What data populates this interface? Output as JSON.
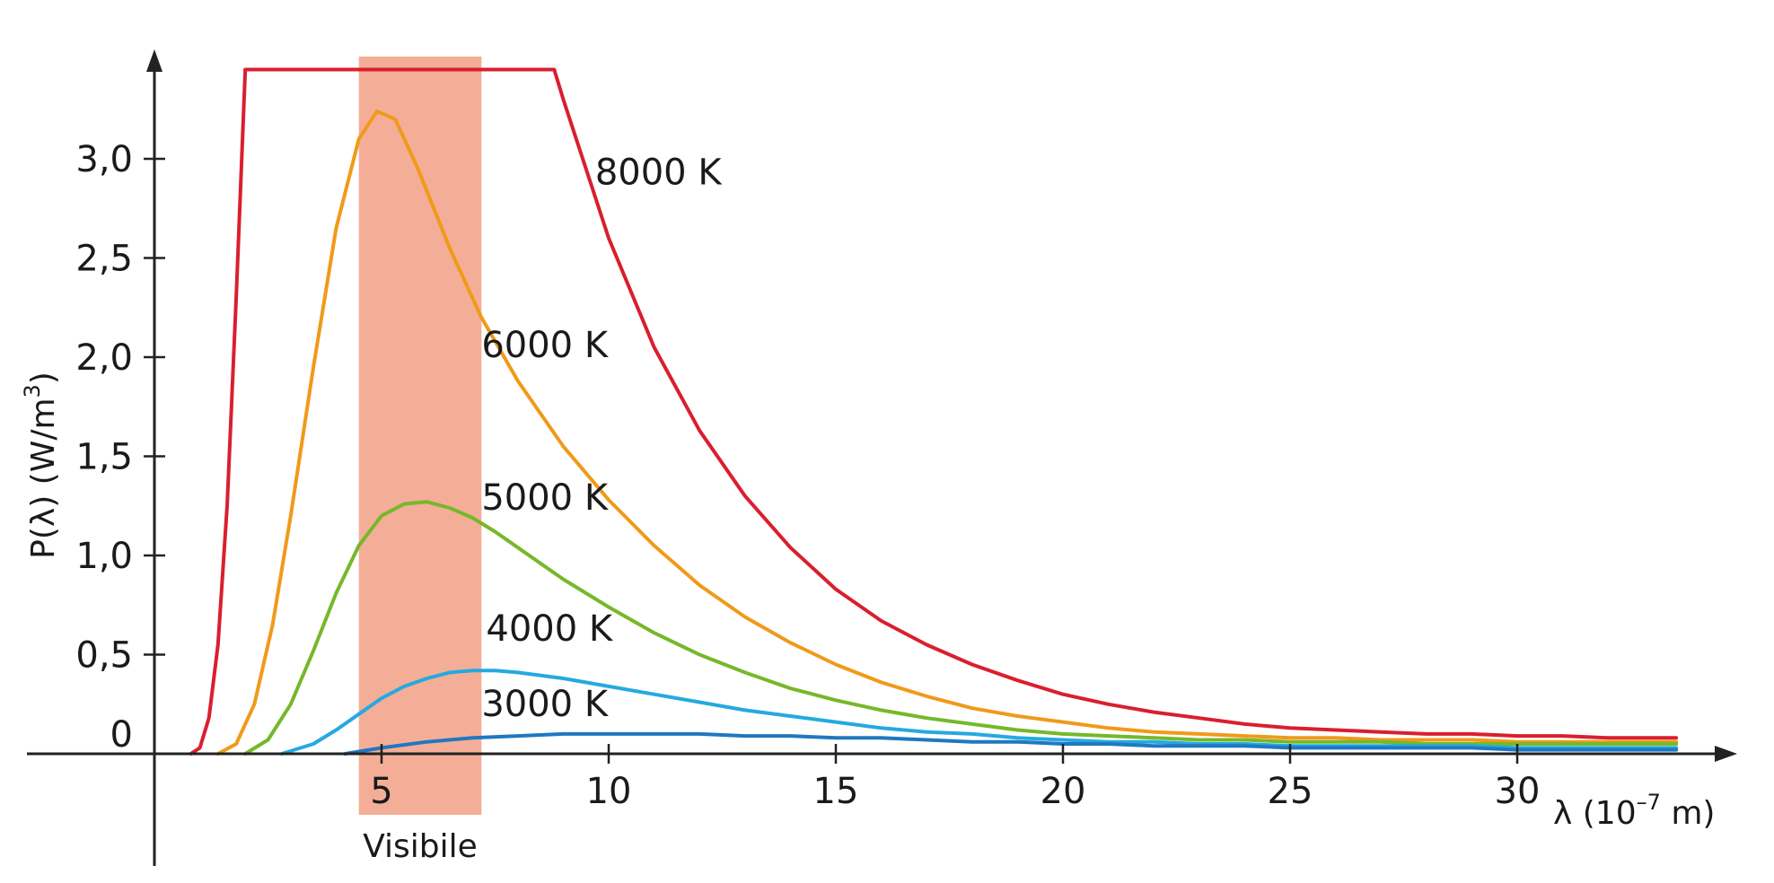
{
  "chart_data": {
    "type": "line",
    "title": "",
    "xlabel_prefix": "λ (10",
    "xlabel_exp": "–7",
    "xlabel_suffix": " m)",
    "ylabel_prefix": "P(λ) (W/m",
    "ylabel_exp": "3",
    "ylabel_suffix": ")",
    "xlim": [
      0,
      33.5
    ],
    "ylim": [
      0,
      3.5
    ],
    "x_ticks": [
      5,
      10,
      15,
      20,
      25,
      30
    ],
    "x_tick_labels": [
      "5",
      "10",
      "15",
      "20",
      "25",
      "30"
    ],
    "y_ticks": [
      0,
      0.5,
      1.0,
      1.5,
      2.0,
      2.5,
      3.0
    ],
    "y_tick_labels": [
      "0",
      "0,5",
      "1,0",
      "1,5",
      "2,0",
      "2,5",
      "3,0"
    ],
    "grid": false,
    "visible_band": {
      "label": "Visibile",
      "x_range": [
        4.5,
        7.2
      ],
      "color": "#f4ae97"
    },
    "series": [
      {
        "name": "8000 K",
        "color": "#d91f2e",
        "x": [
          0.8,
          1.0,
          1.2,
          1.4,
          1.6,
          1.8,
          2.0,
          8.8,
          9.0,
          10,
          11,
          12,
          13,
          14,
          15,
          16,
          17,
          18,
          19,
          20,
          21,
          22,
          23,
          24,
          25,
          26,
          27,
          28,
          29,
          30,
          31,
          32,
          33.5
        ],
        "y": [
          0,
          0.03,
          0.18,
          0.55,
          1.25,
          2.3,
          3.45,
          3.45,
          3.3,
          2.6,
          2.05,
          1.63,
          1.3,
          1.04,
          0.83,
          0.67,
          0.55,
          0.45,
          0.37,
          0.3,
          0.25,
          0.21,
          0.18,
          0.15,
          0.13,
          0.12,
          0.11,
          0.1,
          0.1,
          0.09,
          0.09,
          0.08,
          0.08
        ]
      },
      {
        "name": "6000 K",
        "color": "#f09a1a",
        "x": [
          1.4,
          1.8,
          2.2,
          2.6,
          3.0,
          3.5,
          4.0,
          4.5,
          4.9,
          5.3,
          5.8,
          6.5,
          7.2,
          8,
          9,
          10,
          11,
          12,
          13,
          14,
          15,
          16,
          17,
          18,
          19,
          20,
          21,
          22,
          23,
          24,
          25,
          26,
          27,
          28,
          29,
          30,
          31,
          32,
          33.5
        ],
        "y": [
          0,
          0.05,
          0.25,
          0.65,
          1.2,
          1.95,
          2.65,
          3.1,
          3.24,
          3.2,
          2.95,
          2.55,
          2.2,
          1.88,
          1.55,
          1.28,
          1.05,
          0.85,
          0.69,
          0.56,
          0.45,
          0.36,
          0.29,
          0.23,
          0.19,
          0.16,
          0.13,
          0.11,
          0.1,
          0.09,
          0.08,
          0.08,
          0.07,
          0.07,
          0.07,
          0.06,
          0.06,
          0.06,
          0.06
        ]
      },
      {
        "name": "5000 K",
        "color": "#76b82a",
        "x": [
          2.0,
          2.5,
          3.0,
          3.5,
          4.0,
          4.5,
          5.0,
          5.5,
          6.0,
          6.5,
          7.0,
          7.5,
          8,
          9,
          10,
          11,
          12,
          13,
          14,
          15,
          16,
          17,
          18,
          19,
          20,
          21,
          22,
          23,
          24,
          25,
          26,
          27,
          28,
          29,
          30,
          31,
          32,
          33.5
        ],
        "y": [
          0,
          0.07,
          0.25,
          0.52,
          0.81,
          1.05,
          1.2,
          1.26,
          1.27,
          1.24,
          1.19,
          1.12,
          1.04,
          0.88,
          0.74,
          0.61,
          0.5,
          0.41,
          0.33,
          0.27,
          0.22,
          0.18,
          0.15,
          0.12,
          0.1,
          0.09,
          0.08,
          0.07,
          0.07,
          0.06,
          0.06,
          0.06,
          0.05,
          0.05,
          0.05,
          0.05,
          0.05,
          0.05
        ]
      },
      {
        "name": "4000 K",
        "color": "#25a9e0",
        "x": [
          2.8,
          3.5,
          4.0,
          4.5,
          5.0,
          5.5,
          6.0,
          6.5,
          7.0,
          7.5,
          8,
          9,
          10,
          11,
          12,
          13,
          14,
          15,
          16,
          17,
          18,
          19,
          20,
          21,
          22,
          23,
          24,
          25,
          26,
          27,
          28,
          29,
          30,
          31,
          32,
          33.5
        ],
        "y": [
          0,
          0.05,
          0.12,
          0.2,
          0.28,
          0.34,
          0.38,
          0.41,
          0.42,
          0.42,
          0.41,
          0.38,
          0.34,
          0.3,
          0.26,
          0.22,
          0.19,
          0.16,
          0.13,
          0.11,
          0.1,
          0.08,
          0.07,
          0.06,
          0.06,
          0.05,
          0.05,
          0.04,
          0.04,
          0.04,
          0.04,
          0.04,
          0.03,
          0.03,
          0.03,
          0.03
        ]
      },
      {
        "name": "3000 K",
        "color": "#1f78c1",
        "x": [
          4.2,
          5.0,
          6.0,
          7.0,
          8,
          9,
          10,
          11,
          12,
          13,
          14,
          15,
          16,
          17,
          18,
          19,
          20,
          21,
          22,
          23,
          24,
          25,
          26,
          27,
          28,
          29,
          30,
          31,
          32,
          33.5
        ],
        "y": [
          0,
          0.03,
          0.06,
          0.08,
          0.09,
          0.1,
          0.1,
          0.1,
          0.1,
          0.09,
          0.09,
          0.08,
          0.08,
          0.07,
          0.06,
          0.06,
          0.05,
          0.05,
          0.04,
          0.04,
          0.04,
          0.03,
          0.03,
          0.03,
          0.03,
          0.03,
          0.02,
          0.02,
          0.02,
          0.02
        ]
      }
    ],
    "curve_label_positions": [
      {
        "name": "8000 K",
        "x": 9.7,
        "y": 2.87
      },
      {
        "name": "6000 K",
        "x": 7.2,
        "y": 2.0
      },
      {
        "name": "5000 K",
        "x": 7.2,
        "y": 1.23
      },
      {
        "name": "4000 K",
        "x": 7.3,
        "y": 0.57
      },
      {
        "name": "3000 K",
        "x": 7.2,
        "y": 0.19
      }
    ]
  }
}
